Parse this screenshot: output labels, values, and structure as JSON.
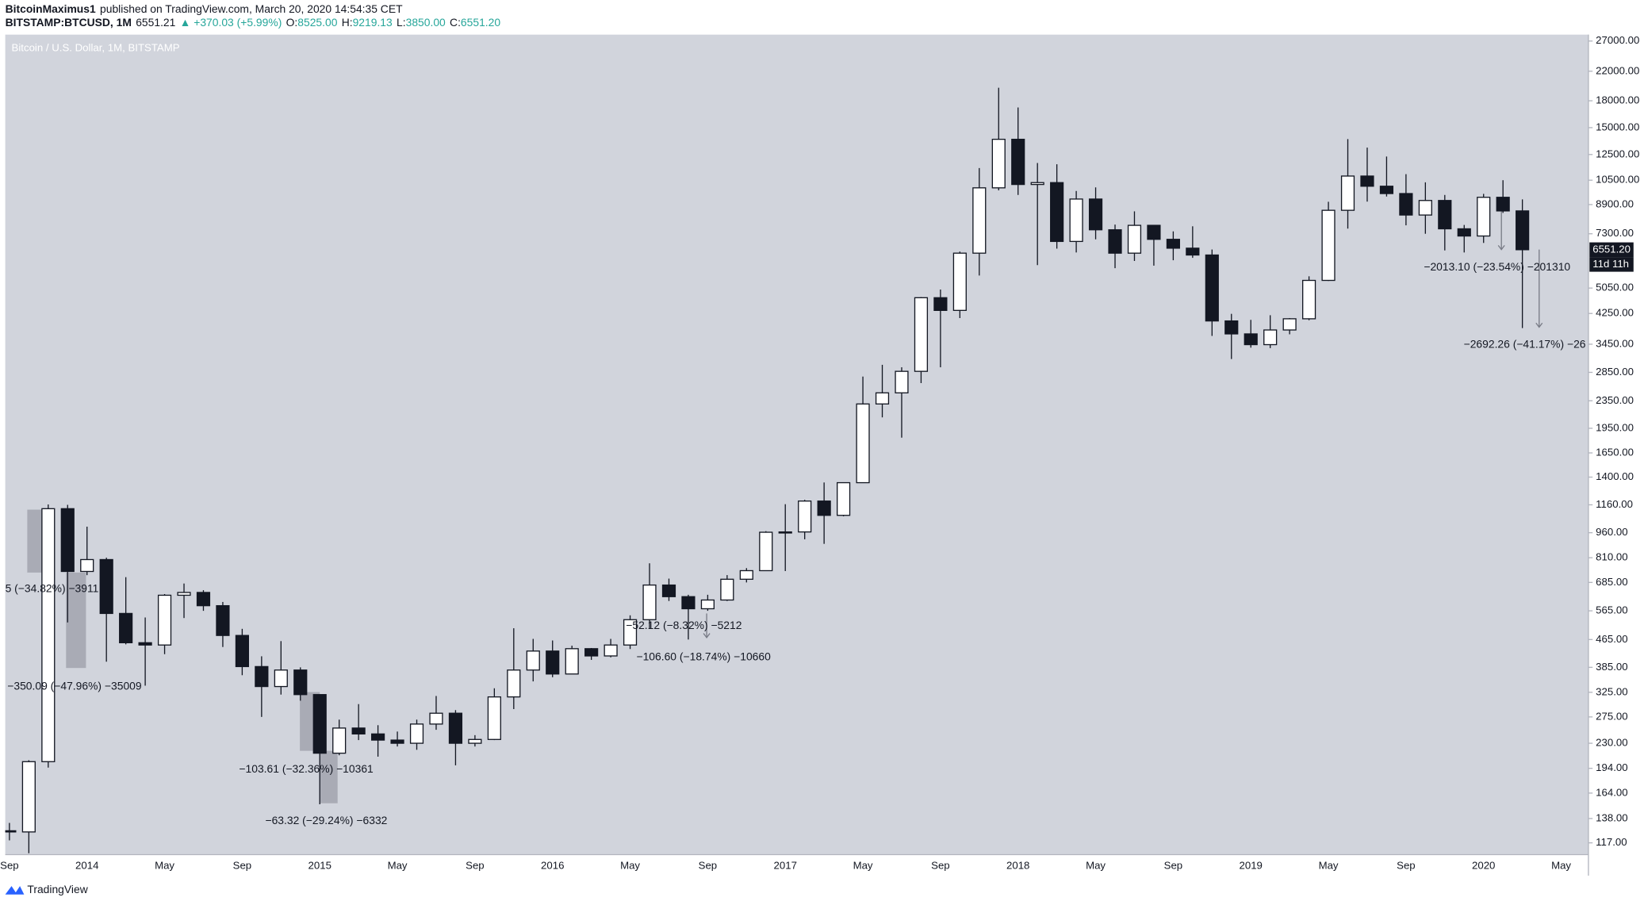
{
  "header": {
    "author": "BitcoinMaximus1",
    "published": "published on TradingView.com, March 20, 2020 14:54:35 CET",
    "symbol": "BITSTAMP:BTCUSD, 1M",
    "price": "6551.21",
    "change": "▲ +370.03 (+5.99%)",
    "o_label": "O:",
    "o_value": "8525.00",
    "h_label": "H:",
    "h_value": "9219.13",
    "l_label": "L:",
    "l_value": "3850.00",
    "c_label": "C:",
    "c_value": "6551.20"
  },
  "footer": {
    "brand": "TradingView"
  },
  "chart_data": {
    "type": "candlestick",
    "title": "Bitcoin / U.S. Dollar, 1M, BITSTAMP",
    "categories": [
      "Sep",
      null,
      null,
      null,
      "2014",
      null,
      null,
      null,
      "May",
      null,
      null,
      null,
      "Sep",
      null,
      null,
      null,
      "2015",
      null,
      null,
      null,
      "May",
      null,
      null,
      null,
      "Sep",
      null,
      null,
      null,
      "2016",
      null,
      null,
      null,
      "May",
      null,
      null,
      null,
      "Sep",
      null,
      null,
      null,
      "2017",
      null,
      null,
      null,
      "May",
      null,
      null,
      null,
      "Sep",
      null,
      null,
      null,
      "2018",
      null,
      null,
      null,
      "May",
      null,
      null,
      null,
      "Sep",
      null,
      null,
      null,
      "2019",
      null,
      null,
      null,
      "May",
      null,
      null,
      null,
      "Sep",
      null,
      null,
      null,
      "2020",
      null,
      null,
      null,
      "May"
    ],
    "open": [
      127,
      126,
      203,
      1130,
      738,
      800,
      555,
      455,
      448,
      628,
      640,
      585,
      478,
      387,
      338,
      378,
      320,
      215,
      255,
      245,
      235,
      230,
      262,
      282,
      230,
      236,
      315,
      378,
      430,
      368,
      437,
      416,
      448,
      532,
      673,
      622,
      573,
      608,
      700,
      742,
      963,
      965,
      1190,
      1080,
      1348,
      2300,
      2480,
      2870,
      4730,
      4340,
      6400,
      9970,
      13860,
      10200,
      10330,
      6930,
      9240,
      7500,
      6400,
      7730,
      7030,
      6620,
      6320,
      4040,
      3700,
      3440,
      3800,
      4100,
      5320,
      8560,
      10800,
      10080,
      9590,
      8290,
      9150,
      7550,
      7190,
      9350,
      8525,
      null,
      null
    ],
    "high": [
      134,
      205,
      1163,
      1160,
      1000,
      810,
      710,
      540,
      633,
      680,
      650,
      600,
      500,
      415,
      460,
      385,
      320,
      270,
      300,
      260,
      249,
      270,
      317,
      288,
      243,
      334,
      502,
      467,
      462,
      446,
      439,
      467,
      548,
      780,
      703,
      630,
      630,
      720,
      755,
      970,
      1165,
      1200,
      1350,
      1350,
      2770,
      3000,
      2950,
      4750,
      5000,
      6470,
      11400,
      19660,
      17200,
      11800,
      11700,
      9760,
      10000,
      7770,
      8500,
      7750,
      7420,
      7680,
      6560,
      4240,
      4070,
      4200,
      4120,
      5470,
      9070,
      13880,
      13100,
      12330,
      10940,
      10350,
      9500,
      7750,
      9570,
      10500,
      9219.13,
      null,
      null
    ],
    "low": [
      119,
      109,
      195,
      522,
      720,
      400,
      450,
      340,
      421,
      538,
      565,
      442,
      365,
      275,
      320,
      307,
      152,
      212,
      235,
      210,
      225,
      220,
      252,
      198,
      225,
      235,
      290,
      350,
      360,
      368,
      405,
      412,
      436,
      500,
      604,
      465,
      565,
      604,
      685,
      742,
      740,
      918,
      890,
      1073,
      1348,
      2100,
      1830,
      2650,
      2950,
      4120,
      5500,
      9800,
      9500,
      5900,
      6600,
      6430,
      7030,
      5780,
      6070,
      5880,
      6100,
      6200,
      3650,
      3120,
      3370,
      3360,
      3690,
      4060,
      5300,
      7560,
      9080,
      9400,
      7730,
      7300,
      6520,
      6430,
      6860,
      8410,
      3850,
      null,
      null
    ],
    "close": [
      126,
      203,
      1130,
      738,
      800,
      555,
      455,
      448,
      628,
      640,
      585,
      478,
      387,
      338,
      378,
      320,
      215,
      255,
      245,
      235,
      230,
      262,
      282,
      230,
      236,
      315,
      378,
      430,
      368,
      437,
      416,
      448,
      532,
      673,
      622,
      573,
      608,
      700,
      742,
      963,
      965,
      1190,
      1080,
      1348,
      2300,
      2480,
      2870,
      4730,
      4340,
      6400,
      9970,
      13860,
      10200,
      10330,
      6930,
      9240,
      7500,
      6400,
      7730,
      7030,
      6620,
      6320,
      4040,
      3700,
      3440,
      3800,
      4100,
      5320,
      8560,
      10800,
      10080,
      9590,
      8290,
      9150,
      7550,
      7190,
      9350,
      8525,
      6551.2,
      null,
      null
    ],
    "up_color": "#ffffff",
    "down_color": "#131722",
    "wick_color": "#131722",
    "background": "#d1d4dc",
    "log_scale": true,
    "grid": false,
    "ylim": [
      108,
      28200
    ],
    "yticks": [
      {
        "value": 27000,
        "label": "27000.00"
      },
      {
        "value": 22000,
        "label": "22000.00"
      },
      {
        "value": 18000,
        "label": "18000.00"
      },
      {
        "value": 15000,
        "label": "15000.00"
      },
      {
        "value": 12500,
        "label": "12500.00"
      },
      {
        "value": 10500,
        "label": "10500.00"
      },
      {
        "value": 8900,
        "label": "8900.00"
      },
      {
        "value": 7300,
        "label": "7300.00"
      },
      {
        "value": 5050,
        "label": "5050.00"
      },
      {
        "value": 4250,
        "label": "4250.00"
      },
      {
        "value": 3450,
        "label": "3450.00"
      },
      {
        "value": 2850,
        "label": "2850.00"
      },
      {
        "value": 2350,
        "label": "2350.00"
      },
      {
        "value": 1950,
        "label": "1950.00"
      },
      {
        "value": 1650,
        "label": "1650.00"
      },
      {
        "value": 1400,
        "label": "1400.00"
      },
      {
        "value": 1160,
        "label": "1160.00"
      },
      {
        "value": 960,
        "label": "960.00"
      },
      {
        "value": 810,
        "label": "810.00"
      },
      {
        "value": 685,
        "label": "685.00"
      },
      {
        "value": 565,
        "label": "565.00"
      },
      {
        "value": 465,
        "label": "465.00"
      },
      {
        "value": 385,
        "label": "385.00"
      },
      {
        "value": 325,
        "label": "325.00"
      },
      {
        "value": 275,
        "label": "275.00"
      },
      {
        "value": 230,
        "label": "230.00"
      },
      {
        "value": 194,
        "label": "194.00"
      },
      {
        "value": 164,
        "label": "164.00"
      },
      {
        "value": 138,
        "label": "138.00"
      },
      {
        "value": 117,
        "label": "117.00"
      }
    ],
    "last_price_label": "6551.20",
    "countdown": "11d 11h",
    "annotations": [
      "−2013.10 (−23.54%) −201310",
      "−2692.26 (−41.17%) −26",
      "−52.12 (−8.32%) −5212",
      "−106.60 (−18.74%) −10660",
      "5 (−34.82%) −3911",
      "−350.09 (−47.96%) −35009",
      "−103.61 (−32.36%) −10361",
      "−63.32 (−29.24%) −6332"
    ]
  }
}
